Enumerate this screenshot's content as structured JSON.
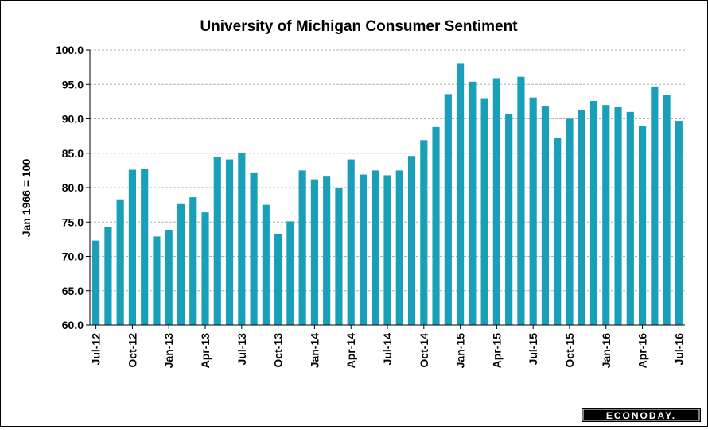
{
  "chart_data": {
    "type": "bar",
    "title": "University  of Michigan Consumer  Sentiment",
    "ylabel": "Jan 1966 = 100",
    "xlabel": "",
    "ylim": [
      60,
      100
    ],
    "yticks": [
      "60.0",
      "65.0",
      "70.0",
      "75.0",
      "80.0",
      "85.0",
      "90.0",
      "95.0",
      "100.0"
    ],
    "categories": [
      "Jul-12",
      "Aug-12",
      "Sep-12",
      "Oct-12",
      "Nov-12",
      "Dec-12",
      "Jan-13",
      "Feb-13",
      "Mar-13",
      "Apr-13",
      "May-13",
      "Jun-13",
      "Jul-13",
      "Aug-13",
      "Sep-13",
      "Oct-13",
      "Nov-13",
      "Dec-13",
      "Jan-14",
      "Feb-14",
      "Mar-14",
      "Apr-14",
      "May-14",
      "Jun-14",
      "Jul-14",
      "Aug-14",
      "Sep-14",
      "Oct-14",
      "Nov-14",
      "Dec-14",
      "Jan-15",
      "Feb-15",
      "Mar-15",
      "Apr-15",
      "May-15",
      "Jun-15",
      "Jul-15",
      "Aug-15",
      "Sep-15",
      "Oct-15",
      "Nov-15",
      "Dec-15",
      "Jan-16",
      "Feb-16",
      "Mar-16",
      "Apr-16",
      "May-16",
      "Jun-16",
      "Jul-16"
    ],
    "values": [
      72.3,
      74.3,
      78.3,
      82.6,
      82.7,
      72.9,
      73.8,
      77.6,
      78.6,
      76.4,
      84.5,
      84.1,
      85.1,
      82.1,
      77.5,
      73.2,
      75.1,
      82.5,
      81.2,
      81.6,
      80.0,
      84.1,
      81.9,
      82.5,
      81.8,
      82.5,
      84.6,
      86.9,
      88.8,
      93.6,
      98.1,
      95.4,
      93.0,
      95.9,
      90.7,
      96.1,
      93.1,
      91.9,
      87.2,
      90.0,
      91.3,
      92.6,
      92.0,
      91.7,
      91.0,
      89.0,
      94.7,
      93.5,
      89.7
    ],
    "tick_labels": [
      {
        "index": 0,
        "label": "Jul-12"
      },
      {
        "index": 3,
        "label": "Oct-12"
      },
      {
        "index": 6,
        "label": "Jan-13"
      },
      {
        "index": 9,
        "label": "Apr-13"
      },
      {
        "index": 12,
        "label": "Jul-13"
      },
      {
        "index": 15,
        "label": "Oct-13"
      },
      {
        "index": 18,
        "label": "Jan-14"
      },
      {
        "index": 21,
        "label": "Apr-14"
      },
      {
        "index": 24,
        "label": "Jul-14"
      },
      {
        "index": 27,
        "label": "Oct-14"
      },
      {
        "index": 30,
        "label": "Jan-15"
      },
      {
        "index": 33,
        "label": "Apr-15"
      },
      {
        "index": 36,
        "label": "Jul-15"
      },
      {
        "index": 39,
        "label": "Oct-15"
      },
      {
        "index": 42,
        "label": "Jan-16"
      },
      {
        "index": 45,
        "label": "Apr-16"
      },
      {
        "index": 48,
        "label": "Jul-16"
      }
    ],
    "grid": true,
    "bar_color": "#1a9fb8",
    "grid_color": "#b0b0b0"
  },
  "branding": {
    "logo_text": "ECONODAY."
  }
}
